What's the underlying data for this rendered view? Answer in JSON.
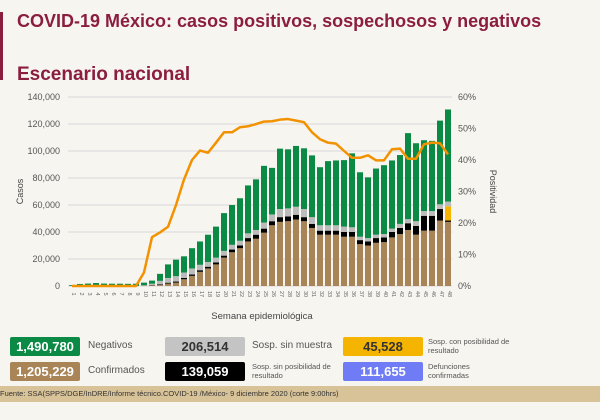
{
  "header": {
    "title": "COVID-19 México: casos positivos, sospechosos y negativos",
    "subtitle": "Escenario nacional"
  },
  "chart_data": {
    "type": "bar",
    "stacked": true,
    "xlabel": "Semana epidemiológica",
    "ylabel": "Casos",
    "y2label": "Positividad",
    "ylim": [
      0,
      140000
    ],
    "y2lim": [
      0,
      60
    ],
    "yticks": [
      "0",
      "20,000",
      "40,000",
      "60,000",
      "80,000",
      "100,000",
      "120,000",
      "140,000"
    ],
    "y2ticks": [
      "0%",
      "10%",
      "20%",
      "30%",
      "40%",
      "50%",
      "60%"
    ],
    "grid": true,
    "categories": [
      "1",
      "2",
      "3",
      "4",
      "5",
      "6",
      "7",
      "8",
      "9",
      "10",
      "11",
      "12",
      "13",
      "14",
      "15",
      "16",
      "17",
      "18",
      "19",
      "20",
      "21",
      "22",
      "23",
      "24",
      "25",
      "26",
      "27",
      "28",
      "29",
      "30",
      "31",
      "32",
      "33",
      "34",
      "35",
      "36",
      "37",
      "38",
      "39",
      "40",
      "41",
      "42",
      "43",
      "44",
      "45",
      "46",
      "47",
      "48"
    ],
    "series": [
      {
        "name": "Confirmados",
        "color": "#a88456",
        "values": [
          0,
          0,
          0,
          0,
          0,
          0,
          0,
          0,
          0,
          200,
          500,
          800,
          1750,
          2500,
          5000,
          7500,
          10500,
          13000,
          16000,
          21000,
          25000,
          28000,
          33000,
          35000,
          39500,
          45000,
          47500,
          48000,
          49250,
          48000,
          43000,
          38000,
          38000,
          38000,
          36500,
          36500,
          31000,
          30000,
          32000,
          32500,
          36000,
          38500,
          41500,
          38000,
          41000,
          41000,
          48500,
          47500
        ]
      },
      {
        "name": "Sosp. sin posibilidad de resultado",
        "color": "#000000",
        "values": [
          0,
          0,
          0,
          0,
          0,
          0,
          0,
          0,
          0,
          100,
          200,
          500,
          700,
          800,
          1000,
          1000,
          1200,
          1300,
          1500,
          1500,
          2000,
          2000,
          2500,
          3000,
          3000,
          3000,
          3500,
          3500,
          3500,
          3000,
          3000,
          3000,
          3000,
          3000,
          3500,
          3500,
          3000,
          3000,
          3500,
          3500,
          4000,
          4500,
          5000,
          6500,
          11000,
          11000,
          8500,
          1000
        ]
      },
      {
        "name": "Sosp. con posibilidad de resultado",
        "color": "#f5b400",
        "values": [
          0,
          0,
          0,
          0,
          0,
          0,
          0,
          0,
          0,
          0,
          0,
          0,
          0,
          0,
          0,
          0,
          0,
          0,
          0,
          0,
          0,
          0,
          0,
          0,
          0,
          0,
          0,
          0,
          0,
          0,
          0,
          0,
          0,
          0,
          0,
          0,
          0,
          0,
          0,
          0,
          0,
          0,
          0,
          0,
          0,
          0,
          0,
          10500
        ]
      },
      {
        "name": "Sosp. sin muestra",
        "color": "#bcbcbc",
        "values": [
          0,
          0,
          0,
          0,
          0,
          0,
          0,
          0,
          0,
          400,
          1000,
          2500,
          3500,
          4000,
          4000,
          4500,
          4000,
          3500,
          3500,
          3500,
          3500,
          3500,
          3500,
          3500,
          4500,
          5000,
          6000,
          6000,
          6000,
          6000,
          5000,
          4000,
          4000,
          4000,
          4000,
          3500,
          2500,
          2500,
          2500,
          2500,
          2500,
          3000,
          3000,
          3500,
          3500,
          3500,
          3500,
          3500
        ]
      },
      {
        "name": "Negativos",
        "color": "#0a8a45",
        "values": [
          600,
          1500,
          1800,
          2200,
          1800,
          1700,
          1700,
          1600,
          1700,
          1800,
          2300,
          5200,
          10050,
          12200,
          12000,
          15000,
          17300,
          20200,
          23000,
          28000,
          29500,
          31500,
          35500,
          37500,
          42000,
          34500,
          44750,
          43750,
          45000,
          45000,
          45750,
          43000,
          47500,
          48000,
          49250,
          54750,
          47750,
          45000,
          49000,
          51000,
          50500,
          51000,
          63750,
          57750,
          52500,
          52000,
          62000,
          68250
        ]
      }
    ],
    "line": {
      "name": "Positividad",
      "color": "#f39200",
      "values": [
        0,
        0,
        0,
        0,
        0,
        0,
        0,
        0,
        0,
        4.3,
        15.5,
        17,
        18.8,
        25.7,
        33.8,
        40,
        43,
        42.3,
        45.5,
        48.8,
        48.8,
        50.4,
        50.7,
        51.4,
        52.2,
        52.3,
        52.8,
        53,
        52.5,
        52,
        48.8,
        46.6,
        45.5,
        45.2,
        42.9,
        40.7,
        40.7,
        41.5,
        39.9,
        39.9,
        43.4,
        43.6,
        40.4,
        40.4,
        45,
        45.5,
        45.3,
        41.8
      ]
    }
  },
  "stats": {
    "negativos": {
      "value": "1,490,780",
      "label": "Negativos",
      "color": "#0a8a45"
    },
    "confirmados": {
      "value": "1,205,229",
      "label": "Confirmados",
      "color": "#a88456"
    },
    "sin_muestra": {
      "value": "206,514",
      "label": "Sosp. sin muestra",
      "color": "#c4c4c4"
    },
    "sin_posibilidad": {
      "value": "139,059",
      "label": "Sosp. sin posibilidad de resultado",
      "color": "#000000"
    },
    "con_posibilidad": {
      "value": "45,528",
      "label": "Sosp. con posibilidad de resultado",
      "color": "#f5b400"
    },
    "defunciones": {
      "value": "111,655",
      "label": "Defunciones confirmadas",
      "color": "#6f7cf5"
    }
  },
  "footer": "Fuente: SSA(SPPS/DGE/InDRE/Informe técnico.COVID-19 /México- 9 diciembre 2020 (corte 9:00hrs)"
}
